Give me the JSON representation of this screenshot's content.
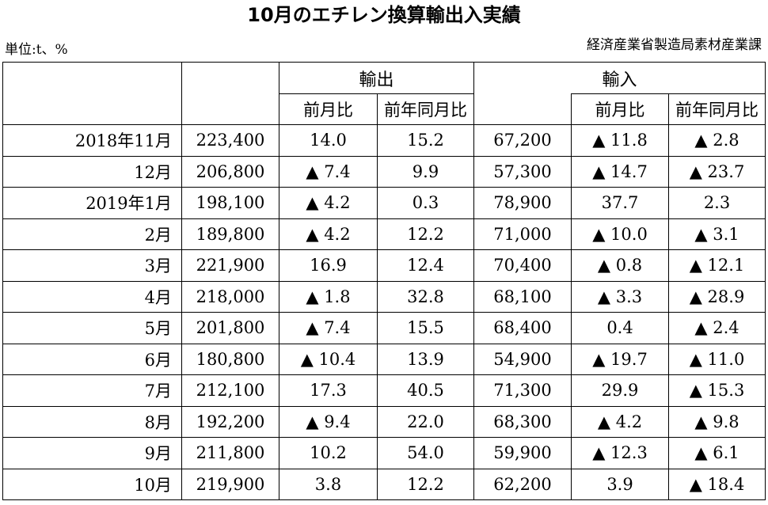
{
  "title": "10月のエチレン換算輸出入実績",
  "unit": "単位:t、%",
  "source": "経済産業省製造局素材産業課",
  "headers": {
    "export": "輸出",
    "import": "輸入",
    "mom": "前月比",
    "yoy": "前年同月比"
  },
  "rows": [
    {
      "month": "2018年11月",
      "exp": "223,400",
      "exp_mom": "14.0",
      "exp_yoy": "15.2",
      "imp": "67,200",
      "imp_mom": "▲ 11.8",
      "imp_yoy": "▲ 2.8"
    },
    {
      "month": "12月",
      "exp": "206,800",
      "exp_mom": "▲ 7.4",
      "exp_yoy": "9.9",
      "imp": "57,300",
      "imp_mom": "▲ 14.7",
      "imp_yoy": "▲ 23.7"
    },
    {
      "month": "2019年1月",
      "exp": "198,100",
      "exp_mom": "▲ 4.2",
      "exp_yoy": "0.3",
      "imp": "78,900",
      "imp_mom": "37.7",
      "imp_yoy": "2.3"
    },
    {
      "month": "2月",
      "exp": "189,800",
      "exp_mom": "▲ 4.2",
      "exp_yoy": "12.2",
      "imp": "71,000",
      "imp_mom": "▲ 10.0",
      "imp_yoy": "▲ 3.1"
    },
    {
      "month": "3月",
      "exp": "221,900",
      "exp_mom": "16.9",
      "exp_yoy": "12.4",
      "imp": "70,400",
      "imp_mom": "▲ 0.8",
      "imp_yoy": "▲ 12.1"
    },
    {
      "month": "4月",
      "exp": "218,000",
      "exp_mom": "▲ 1.8",
      "exp_yoy": "32.8",
      "imp": "68,100",
      "imp_mom": "▲ 3.3",
      "imp_yoy": "▲ 28.9"
    },
    {
      "month": "5月",
      "exp": "201,800",
      "exp_mom": "▲ 7.4",
      "exp_yoy": "15.5",
      "imp": "68,400",
      "imp_mom": "0.4",
      "imp_yoy": "▲ 2.4"
    },
    {
      "month": "6月",
      "exp": "180,800",
      "exp_mom": "▲ 10.4",
      "exp_yoy": "13.9",
      "imp": "54,900",
      "imp_mom": "▲ 19.7",
      "imp_yoy": "▲ 11.0"
    },
    {
      "month": "7月",
      "exp": "212,100",
      "exp_mom": "17.3",
      "exp_yoy": "40.5",
      "imp": "71,300",
      "imp_mom": "29.9",
      "imp_yoy": "▲ 15.3"
    },
    {
      "month": "8月",
      "exp": "192,200",
      "exp_mom": "▲ 9.4",
      "exp_yoy": "22.0",
      "imp": "68,300",
      "imp_mom": "▲ 4.2",
      "imp_yoy": "▲ 9.8"
    },
    {
      "month": "9月",
      "exp": "211,800",
      "exp_mom": "10.2",
      "exp_yoy": "54.0",
      "imp": "59,900",
      "imp_mom": "▲ 12.3",
      "imp_yoy": "▲ 6.1"
    },
    {
      "month": "10月",
      "exp": "219,900",
      "exp_mom": "3.8",
      "exp_yoy": "12.2",
      "imp": "62,200",
      "imp_mom": "3.9",
      "imp_yoy": "▲ 18.4"
    }
  ]
}
